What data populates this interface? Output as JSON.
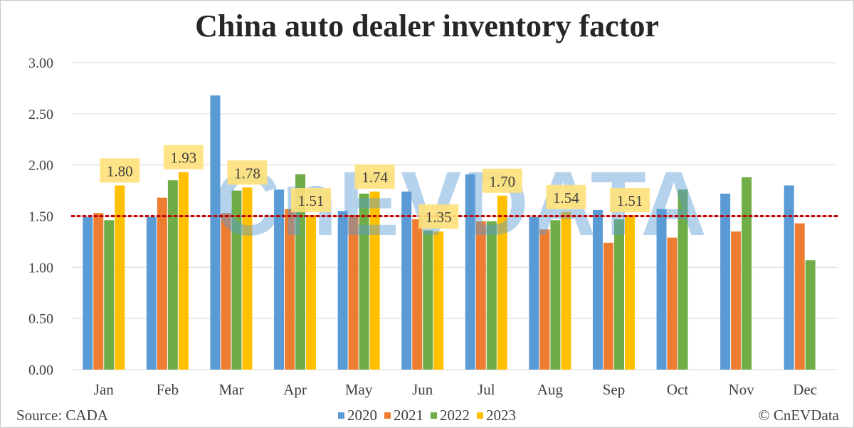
{
  "chart_data": {
    "type": "bar",
    "title": "China auto dealer inventory factor",
    "categories": [
      "Jan",
      "Feb",
      "Mar",
      "Apr",
      "May",
      "Jun",
      "Jul",
      "Aug",
      "Sep",
      "Oct",
      "Nov",
      "Dec"
    ],
    "series": [
      {
        "name": "2020",
        "color": "#5B9BD5",
        "values": [
          1.49,
          1.49,
          2.68,
          1.76,
          1.55,
          1.74,
          1.91,
          1.49,
          1.56,
          1.57,
          1.72,
          1.8
        ]
      },
      {
        "name": "2021",
        "color": "#ED7D31",
        "values": [
          1.53,
          1.68,
          1.53,
          1.57,
          1.51,
          1.47,
          1.45,
          1.37,
          1.24,
          1.29,
          1.35,
          1.43
        ]
      },
      {
        "name": "2022",
        "color": "#70AD47",
        "values": [
          1.46,
          1.85,
          1.75,
          1.91,
          1.72,
          1.36,
          1.45,
          1.46,
          1.47,
          1.76,
          1.88,
          1.07
        ]
      },
      {
        "name": "2023",
        "color": "#FFC000",
        "values": [
          1.8,
          1.93,
          1.78,
          1.51,
          1.74,
          1.35,
          1.7,
          1.54,
          1.51,
          null,
          null,
          null
        ]
      }
    ],
    "data_labels": {
      "series": "2023",
      "values": [
        "1.80",
        "1.93",
        "1.78",
        "1.51",
        "1.74",
        "1.35",
        "1.70",
        "1.54",
        "1.51"
      ]
    },
    "ylim": [
      0,
      3
    ],
    "yticks": [
      "0.00",
      "0.50",
      "1.00",
      "1.50",
      "2.00",
      "2.50",
      "3.00"
    ],
    "reference_line": {
      "value": 1.5,
      "color": "#C00000",
      "style": "dotted"
    },
    "grid": true,
    "legend_position": "bottom",
    "xlabel": "",
    "ylabel": ""
  },
  "source_text": "Source: CADA",
  "credit_text": "© CnEVData",
  "watermark_text": "CnEVDATA",
  "colors": {
    "label_box": "#FFE17A",
    "gridline": "#D9D9D9",
    "axis_text": "#404040"
  }
}
